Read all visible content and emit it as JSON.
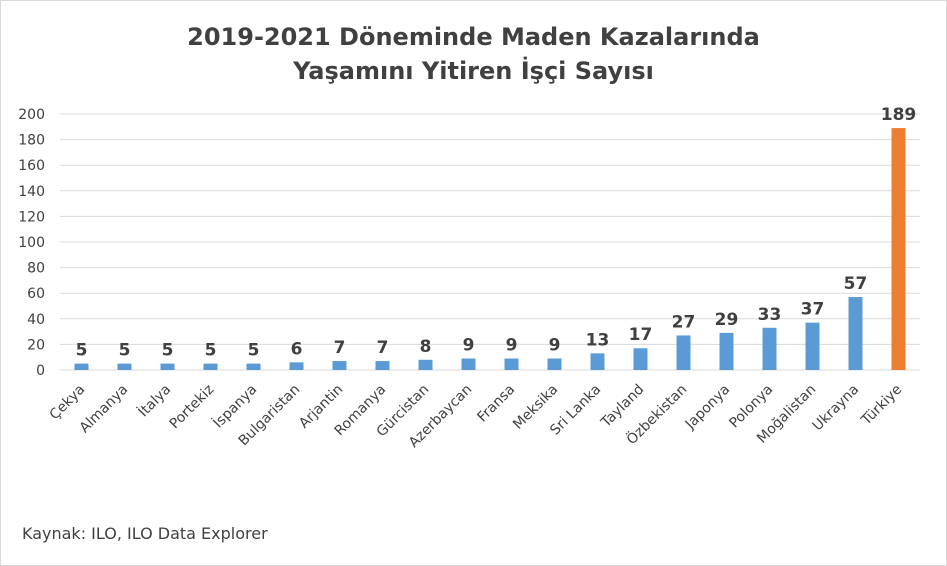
{
  "chart_data": {
    "type": "bar",
    "title_line1": "2019-2021 Döneminde Maden Kazalarında",
    "title_line2": "Yaşamını Yitiren İşçi Sayısı",
    "xlabel": "",
    "ylabel": "",
    "ylim": [
      0,
      200
    ],
    "yticks": [
      0,
      20,
      40,
      60,
      80,
      100,
      120,
      140,
      160,
      180,
      200
    ],
    "grid": true,
    "legend": "none",
    "categories": [
      "Çekya",
      "Almanya",
      "İtalya",
      "Portekiz",
      "İspanya",
      "Bulgaristan",
      "Arjantin",
      "Romanya",
      "Gürcistan",
      "Azerbaycan",
      "Fransa",
      "Meksika",
      "Sri Lanka",
      "Tayland",
      "Özbekistan",
      "Japonya",
      "Polonya",
      "Moğalistan",
      "Ukrayna",
      "Türkiye"
    ],
    "values": [
      5,
      5,
      5,
      5,
      5,
      6,
      7,
      7,
      8,
      9,
      9,
      9,
      13,
      17,
      27,
      29,
      33,
      37,
      57,
      189
    ],
    "colors": {
      "default": "#5b9bd5",
      "highlight": "#ed7d31",
      "highlight_category": "Türkiye",
      "grid": "#d9d9d9",
      "text": "#404040"
    }
  },
  "source_note": "Kaynak: ILO, ILO Data Explorer"
}
